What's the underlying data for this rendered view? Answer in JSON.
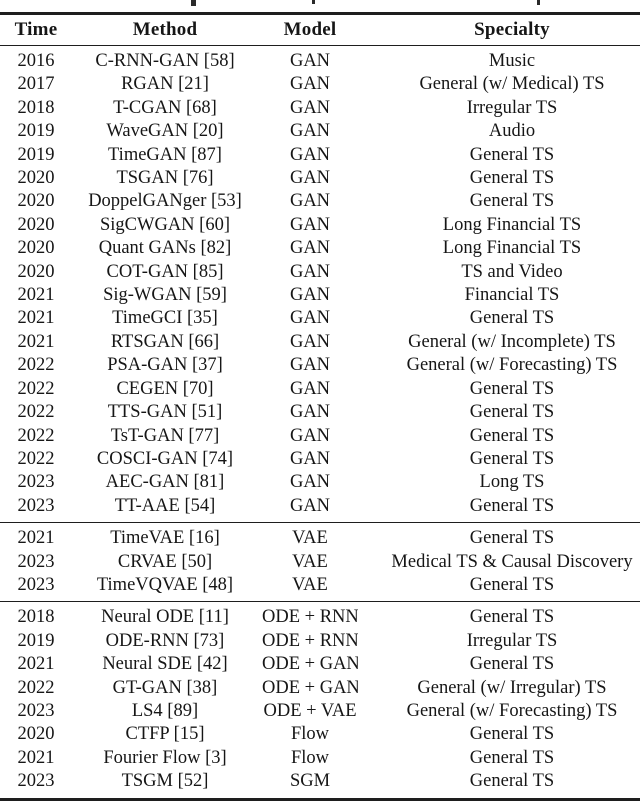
{
  "colors": {
    "background": "#ffffff",
    "text": "#161616",
    "rule": "#1e1e1e"
  },
  "table": {
    "columns": [
      "Time",
      "Method",
      "Model",
      "Specialty"
    ],
    "sections": [
      {
        "name": "gan-section",
        "rows": [
          [
            "2016",
            "C-RNN-GAN [58]",
            "GAN",
            "Music"
          ],
          [
            "2017",
            "RGAN [21]",
            "GAN",
            "General (w/ Medical) TS"
          ],
          [
            "2018",
            "T-CGAN [68]",
            "GAN",
            "Irregular TS"
          ],
          [
            "2019",
            "WaveGAN [20]",
            "GAN",
            "Audio"
          ],
          [
            "2019",
            "TimeGAN [87]",
            "GAN",
            "General TS"
          ],
          [
            "2020",
            "TSGAN [76]",
            "GAN",
            "General TS"
          ],
          [
            "2020",
            "DoppelGANger [53]",
            "GAN",
            "General TS"
          ],
          [
            "2020",
            "SigCWGAN [60]",
            "GAN",
            "Long Financial TS"
          ],
          [
            "2020",
            "Quant GANs [82]",
            "GAN",
            "Long Financial TS"
          ],
          [
            "2020",
            "COT-GAN [85]",
            "GAN",
            "TS and Video"
          ],
          [
            "2021",
            "Sig-WGAN [59]",
            "GAN",
            "Financial TS"
          ],
          [
            "2021",
            "TimeGCI [35]",
            "GAN",
            "General TS"
          ],
          [
            "2021",
            "RTSGAN [66]",
            "GAN",
            "General (w/ Incomplete) TS"
          ],
          [
            "2022",
            "PSA-GAN [37]",
            "GAN",
            "General (w/ Forecasting) TS"
          ],
          [
            "2022",
            "CEGEN [70]",
            "GAN",
            "General TS"
          ],
          [
            "2022",
            "TTS-GAN [51]",
            "GAN",
            "General TS"
          ],
          [
            "2022",
            "TsT-GAN [77]",
            "GAN",
            "General TS"
          ],
          [
            "2022",
            "COSCI-GAN [74]",
            "GAN",
            "General TS"
          ],
          [
            "2023",
            "AEC-GAN [81]",
            "GAN",
            "Long TS"
          ],
          [
            "2023",
            "TT-AAE [54]",
            "GAN",
            "General TS"
          ]
        ]
      },
      {
        "name": "vae-section",
        "rows": [
          [
            "2021",
            "TimeVAE [16]",
            "VAE",
            "General TS"
          ],
          [
            "2023",
            "CRVAE [50]",
            "VAE",
            "Medical TS & Causal Discovery"
          ],
          [
            "2023",
            "TimeVQVAE [48]",
            "VAE",
            "General TS"
          ]
        ]
      },
      {
        "name": "ode-flow-sgm-section",
        "rows": [
          [
            "2018",
            "Neural ODE [11]",
            "ODE + RNN",
            "General TS"
          ],
          [
            "2019",
            "ODE-RNN [73]",
            "ODE + RNN",
            "Irregular TS"
          ],
          [
            "2021",
            "Neural SDE [42]",
            "ODE + GAN",
            "General TS"
          ],
          [
            "2022",
            "GT-GAN [38]",
            "ODE + GAN",
            "General (w/ Irregular) TS"
          ],
          [
            "2023",
            "LS4 [89]",
            "ODE + VAE",
            "General (w/ Forecasting) TS"
          ],
          [
            "2020",
            "CTFP [15]",
            "Flow",
            "General TS"
          ],
          [
            "2021",
            "Fourier Flow [3]",
            "Flow",
            "General TS"
          ],
          [
            "2023",
            "TSGM [52]",
            "SGM",
            "General TS"
          ]
        ]
      }
    ]
  }
}
